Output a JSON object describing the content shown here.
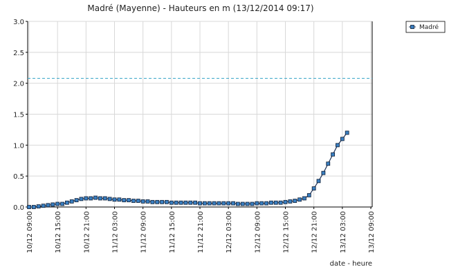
{
  "chart_data": {
    "type": "line",
    "title": "Madré (Mayenne) - Hauteurs en m (13/12/2014 09:17)",
    "x_label": "date - heure",
    "x": [
      "10/12 09:00",
      "10/12 10:00",
      "10/12 11:00",
      "10/12 12:00",
      "10/12 13:00",
      "10/12 14:00",
      "10/12 15:00",
      "10/12 16:00",
      "10/12 17:00",
      "10/12 18:00",
      "10/12 19:00",
      "10/12 20:00",
      "10/12 21:00",
      "10/12 22:00",
      "10/12 23:00",
      "11/12 00:00",
      "11/12 01:00",
      "11/12 02:00",
      "11/12 03:00",
      "11/12 04:00",
      "11/12 05:00",
      "11/12 06:00",
      "11/12 07:00",
      "11/12 08:00",
      "11/12 09:00",
      "11/12 10:00",
      "11/12 11:00",
      "11/12 12:00",
      "11/12 13:00",
      "11/12 14:00",
      "11/12 15:00",
      "11/12 16:00",
      "11/12 17:00",
      "11/12 18:00",
      "11/12 19:00",
      "11/12 20:00",
      "11/12 21:00",
      "11/12 22:00",
      "11/12 23:00",
      "12/12 00:00",
      "12/12 01:00",
      "12/12 02:00",
      "12/12 03:00",
      "12/12 04:00",
      "12/12 05:00",
      "12/12 06:00",
      "12/12 07:00",
      "12/12 08:00",
      "12/12 09:00",
      "12/12 10:00",
      "12/12 11:00",
      "12/12 12:00",
      "12/12 13:00",
      "12/12 14:00",
      "12/12 15:00",
      "12/12 16:00",
      "12/12 17:00",
      "12/12 18:00",
      "12/12 19:00",
      "12/12 20:00",
      "12/12 21:00",
      "12/12 22:00",
      "12/12 23:00",
      "13/12 00:00",
      "13/12 01:00",
      "13/12 02:00",
      "13/12 03:00",
      "13/12 04:00"
    ],
    "series": [
      {
        "name": "Madré",
        "color": "#3a7fc1",
        "values": [
          0,
          0,
          0.01,
          0.02,
          0.03,
          0.04,
          0.05,
          0.05,
          0.07,
          0.09,
          0.11,
          0.13,
          0.14,
          0.14,
          0.15,
          0.14,
          0.14,
          0.13,
          0.12,
          0.12,
          0.11,
          0.11,
          0.1,
          0.1,
          0.09,
          0.09,
          0.08,
          0.08,
          0.08,
          0.08,
          0.07,
          0.07,
          0.07,
          0.07,
          0.07,
          0.07,
          0.06,
          0.06,
          0.06,
          0.06,
          0.06,
          0.06,
          0.06,
          0.06,
          0.05,
          0.05,
          0.05,
          0.05,
          0.06,
          0.06,
          0.06,
          0.07,
          0.07,
          0.07,
          0.08,
          0.09,
          0.1,
          0.12,
          0.14,
          0.19,
          0.3,
          0.42,
          0.55,
          0.7,
          0.85,
          1.0,
          1.1,
          1.2
        ]
      }
    ],
    "xticks": [
      "10/12 09:00",
      "10/12 15:00",
      "10/12 21:00",
      "11/12 03:00",
      "11/12 09:00",
      "11/12 15:00",
      "11/12 21:00",
      "12/12 03:00",
      "12/12 09:00",
      "12/12 15:00",
      "12/12 21:00",
      "13/12 03:00",
      "13/12 09:00"
    ],
    "ylim": [
      0,
      3
    ],
    "yticks": [
      {
        "value": 0,
        "label": "0.0"
      },
      {
        "value": 0.5,
        "label": "0.5"
      },
      {
        "value": 1,
        "label": "1.0"
      },
      {
        "value": 1.5,
        "label": "1.5"
      },
      {
        "value": 2,
        "label": "2.0"
      },
      {
        "value": 2.5,
        "label": "2.5"
      },
      {
        "value": 3,
        "label": "3.0"
      }
    ],
    "reference_line": 2.08,
    "reference_color": "#3aa6c8",
    "grid": true,
    "legend": "top-right"
  }
}
